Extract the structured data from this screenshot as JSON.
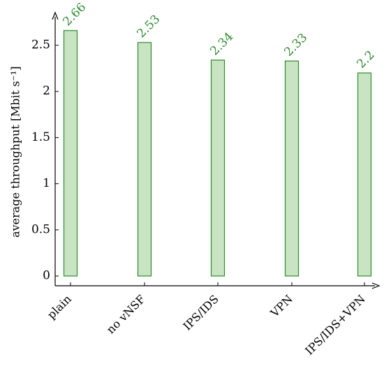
{
  "chart_data": {
    "type": "bar",
    "title": "",
    "xlabel": "",
    "ylabel": "average throughput [Mbit s⁻¹]",
    "categories": [
      "plain",
      "no vNSF",
      "IPS/IDS",
      "VPN",
      "IPS/IDS+VPN"
    ],
    "values": [
      2.66,
      2.53,
      2.34,
      2.33,
      2.2
    ],
    "value_labels": [
      "2.66",
      "2.53",
      "2.34",
      "2.33",
      "2.2"
    ],
    "yticks": [
      0,
      0.5,
      1,
      1.5,
      2,
      2.5
    ],
    "ytick_labels": [
      "0",
      "0.5",
      "1",
      "1.5",
      "2",
      "2.5"
    ],
    "ylim": [
      0,
      2.76
    ],
    "grid": false,
    "legend": "none",
    "colors": {
      "bar_fill": "#c9e4c2",
      "bar_stroke": "#2e8b2e",
      "label": "#2e8b2e"
    }
  }
}
